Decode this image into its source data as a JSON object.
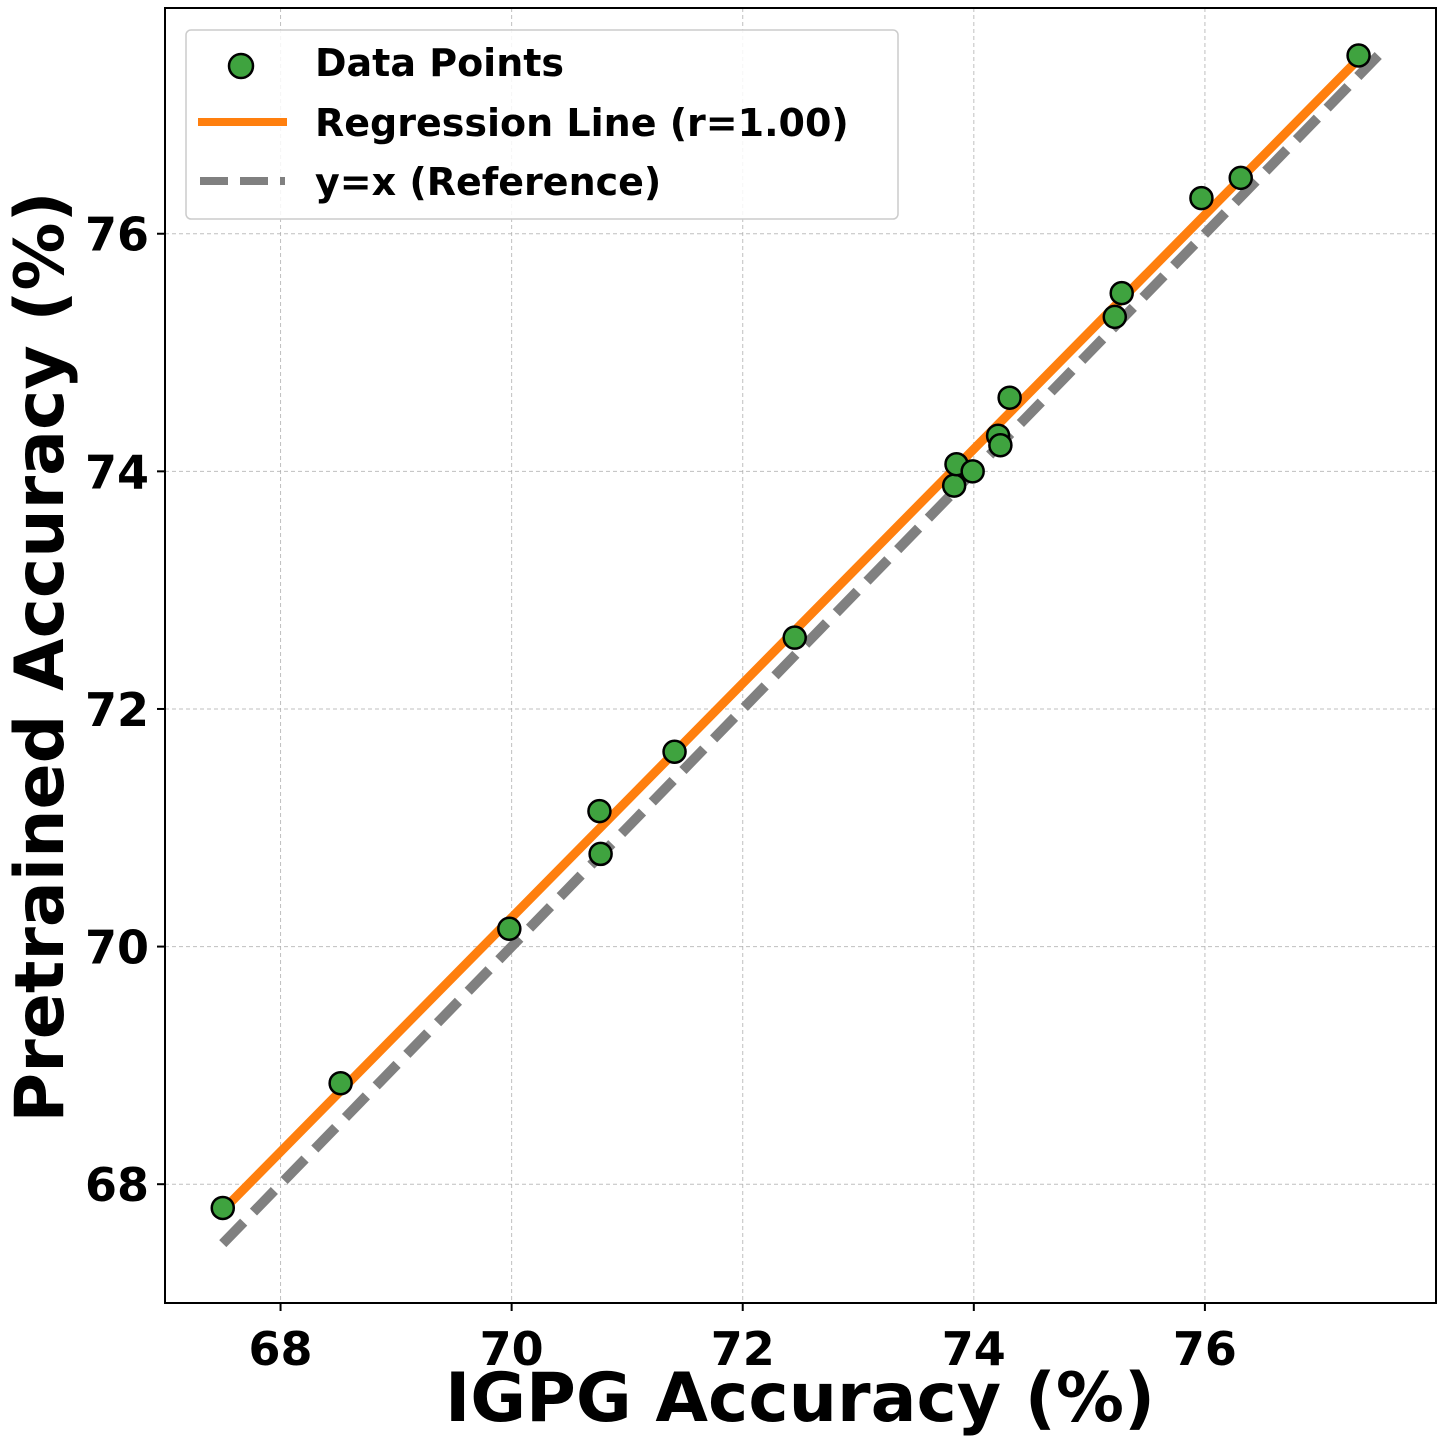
{
  "chart_data": {
    "type": "scatter",
    "xlabel": "IGPG Accuracy (%)",
    "ylabel": "Pretrained Accuracy (%)",
    "xlim": [
      67.0,
      78.0
    ],
    "ylim": [
      67.0,
      77.9
    ],
    "xticks": [
      68,
      70,
      72,
      74,
      76
    ],
    "yticks": [
      68,
      70,
      72,
      74,
      76
    ],
    "grid": true,
    "legend_position": "top-left",
    "series": [
      {
        "name": "Data Points",
        "kind": "scatter",
        "color": "#3fa33f",
        "edge_color": "#000000",
        "points": [
          {
            "x": 67.5,
            "y": 67.8
          },
          {
            "x": 68.52,
            "y": 68.85
          },
          {
            "x": 69.98,
            "y": 70.15
          },
          {
            "x": 70.76,
            "y": 71.14
          },
          {
            "x": 70.77,
            "y": 70.78
          },
          {
            "x": 71.41,
            "y": 71.64
          },
          {
            "x": 72.45,
            "y": 72.6
          },
          {
            "x": 73.83,
            "y": 73.88
          },
          {
            "x": 73.85,
            "y": 74.06
          },
          {
            "x": 73.99,
            "y": 74.0
          },
          {
            "x": 74.21,
            "y": 74.3
          },
          {
            "x": 74.23,
            "y": 74.22
          },
          {
            "x": 74.31,
            "y": 74.62
          },
          {
            "x": 75.22,
            "y": 75.3
          },
          {
            "x": 75.28,
            "y": 75.5
          },
          {
            "x": 75.97,
            "y": 76.3
          },
          {
            "x": 76.31,
            "y": 76.47
          },
          {
            "x": 77.33,
            "y": 77.5
          }
        ]
      },
      {
        "name": "Regression Line (r=1.00)",
        "kind": "line",
        "color": "#ff7f0e",
        "points": [
          {
            "x": 67.5,
            "y": 67.78
          },
          {
            "x": 77.33,
            "y": 77.47
          }
        ]
      },
      {
        "name": "y=x (Reference)",
        "kind": "dashed-line",
        "color": "#808080",
        "points": [
          {
            "x": 67.5,
            "y": 67.5
          },
          {
            "x": 77.5,
            "y": 77.5
          }
        ]
      }
    ]
  }
}
